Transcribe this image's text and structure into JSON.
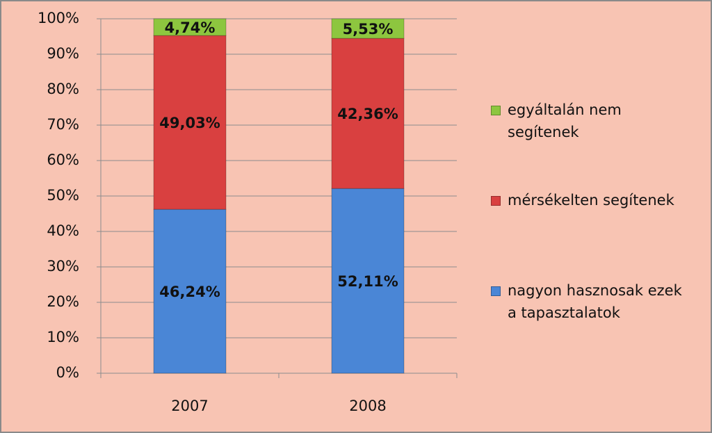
{
  "chart_data": {
    "type": "stacked_bar",
    "categories": [
      "2007",
      "2008"
    ],
    "series": [
      {
        "name": "nagyon hasznosak ezek a tapasztalatok",
        "color": "#4a86d6",
        "values": [
          46.24,
          52.11
        ],
        "value_labels": [
          "46,24%",
          "52,11%"
        ]
      },
      {
        "name": "mérsékelten segítenek",
        "color": "#d94040",
        "values": [
          49.03,
          42.36
        ],
        "value_labels": [
          "49,03%",
          "42,36%"
        ]
      },
      {
        "name": "egyáltalán nem segítenek",
        "color": "#8dc63f",
        "values": [
          4.74,
          5.53
        ],
        "value_labels": [
          "4,74%",
          "5,53%"
        ]
      }
    ],
    "ylim": [
      0,
      100
    ],
    "yticks": [
      {
        "value": 0,
        "label": "0%"
      },
      {
        "value": 10,
        "label": "10%"
      },
      {
        "value": 20,
        "label": "20%"
      },
      {
        "value": 30,
        "label": "30%"
      },
      {
        "value": 40,
        "label": "40%"
      },
      {
        "value": 50,
        "label": "50%"
      },
      {
        "value": 60,
        "label": "60%"
      },
      {
        "value": 70,
        "label": "70%"
      },
      {
        "value": 80,
        "label": "80%"
      },
      {
        "value": 90,
        "label": "90%"
      },
      {
        "value": 100,
        "label": "100%"
      }
    ],
    "grid": true
  }
}
